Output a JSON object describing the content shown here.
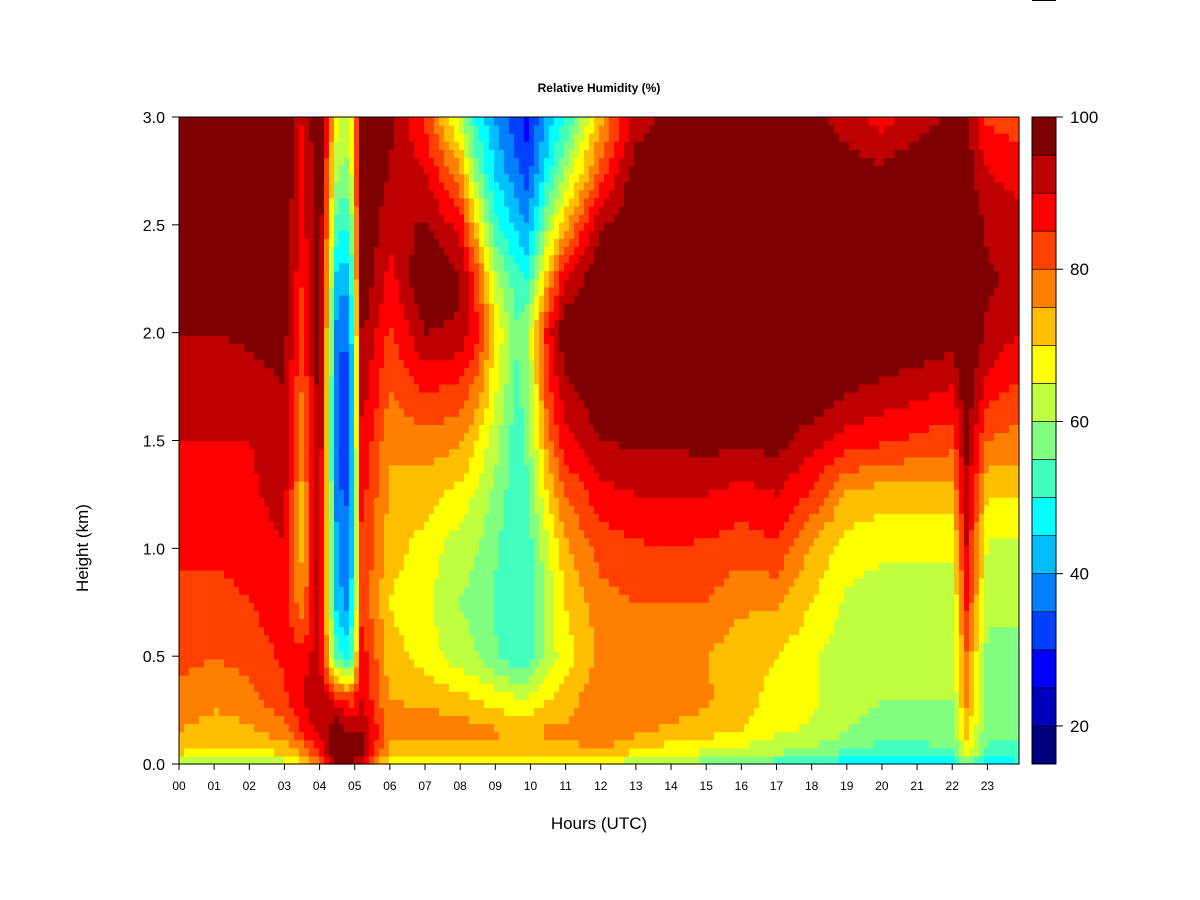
{
  "chart_data": {
    "type": "heatmap",
    "title": "Relative Humidity (%)",
    "xlabel": "Hours (UTC)",
    "ylabel": "Height (km)",
    "xlim": [
      0,
      23.9
    ],
    "ylim": [
      0,
      3.0
    ],
    "x_ticks": [
      "00",
      "01",
      "02",
      "03",
      "04",
      "05",
      "06",
      "07",
      "08",
      "09",
      "10",
      "11",
      "12",
      "13",
      "14",
      "15",
      "16",
      "17",
      "18",
      "19",
      "20",
      "21",
      "22",
      "23"
    ],
    "y_ticks": [
      "0.0",
      "0.5",
      "1.0",
      "1.5",
      "2.0",
      "2.5",
      "3.0"
    ],
    "colorbar": {
      "range": [
        15,
        100
      ],
      "ticks": [
        "20",
        "40",
        "60",
        "80",
        "100"
      ],
      "levels": [
        15,
        20,
        25,
        30,
        35,
        40,
        45,
        50,
        55,
        60,
        65,
        70,
        75,
        80,
        85,
        90,
        95,
        100
      ],
      "colors": [
        "#00007F",
        "#0000BF",
        "#0000FF",
        "#0040FF",
        "#0080FF",
        "#00BFFF",
        "#00FFFF",
        "#40FFBF",
        "#80FF80",
        "#BFFF40",
        "#FFFF00",
        "#FFBF00",
        "#FF8000",
        "#FF4000",
        "#FF0000",
        "#BF0000",
        "#7F0000"
      ]
    },
    "heights_km": [
      0.0,
      0.05,
      0.15,
      0.3,
      0.5,
      0.75,
      1.0,
      1.25,
      1.5,
      1.75,
      2.0,
      2.25,
      2.5,
      2.75,
      3.0
    ],
    "profiles": [
      {
        "hour": 0.0,
        "rh": [
          62,
          70,
          75,
          78,
          82,
          85,
          85,
          88,
          90,
          92,
          95,
          100,
          100,
          100,
          100
        ]
      },
      {
        "hour": 1.0,
        "rh": [
          60,
          68,
          73,
          76,
          80,
          83,
          86,
          88,
          90,
          92,
          95,
          100,
          100,
          100,
          100
        ]
      },
      {
        "hour": 2.0,
        "rh": [
          60,
          68,
          74,
          78,
          82,
          85,
          87,
          89,
          90,
          93,
          96,
          100,
          100,
          100,
          100
        ]
      },
      {
        "hour": 3.0,
        "rh": [
          62,
          70,
          78,
          84,
          86,
          88,
          90,
          92,
          93,
          95,
          97,
          100,
          100,
          100,
          100
        ]
      },
      {
        "hour": 3.5,
        "rh": [
          68,
          75,
          85,
          90,
          88,
          76,
          74,
          74,
          76,
          80,
          82,
          85,
          87,
          88,
          90
        ]
      },
      {
        "hour": 4.0,
        "rh": [
          75,
          85,
          92,
          94,
          92,
          93,
          95,
          96,
          97,
          98,
          100,
          100,
          100,
          100,
          100
        ]
      },
      {
        "hour": 4.5,
        "rh": [
          95,
          100,
          100,
          88,
          52,
          42,
          40,
          36,
          34,
          34,
          36,
          42,
          52,
          60,
          66
        ]
      },
      {
        "hour": 4.85,
        "rh": [
          95,
          100,
          95,
          82,
          48,
          38,
          36,
          34,
          32,
          32,
          36,
          42,
          50,
          58,
          64
        ]
      },
      {
        "hour": 5.2,
        "rh": [
          90,
          96,
          95,
          90,
          88,
          84,
          85,
          87,
          90,
          93,
          96,
          100,
          100,
          100,
          100
        ]
      },
      {
        "hour": 6.0,
        "rh": [
          65,
          72,
          78,
          75,
          72,
          70,
          72,
          74,
          76,
          80,
          84,
          88,
          92,
          95,
          96
        ]
      },
      {
        "hour": 7.0,
        "rh": [
          62,
          70,
          78,
          74,
          68,
          66,
          68,
          72,
          78,
          86,
          95,
          100,
          96,
          90,
          84
        ]
      },
      {
        "hour": 8.0,
        "rh": [
          64,
          72,
          78,
          72,
          62,
          60,
          62,
          68,
          76,
          84,
          94,
          96,
          88,
          76,
          62
        ]
      },
      {
        "hour": 8.5,
        "rh": [
          68,
          72,
          76,
          70,
          60,
          58,
          60,
          64,
          70,
          78,
          86,
          82,
          70,
          56,
          48
        ]
      },
      {
        "hour": 9.0,
        "rh": [
          66,
          72,
          76,
          68,
          56,
          54,
          56,
          58,
          62,
          66,
          70,
          62,
          52,
          44,
          40
        ]
      },
      {
        "hour": 9.6,
        "rh": [
          64,
          70,
          74,
          66,
          50,
          50,
          50,
          52,
          52,
          54,
          56,
          52,
          44,
          36,
          32
        ]
      },
      {
        "hour": 9.9,
        "rh": [
          66,
          72,
          74,
          66,
          52,
          52,
          52,
          54,
          56,
          58,
          60,
          50,
          40,
          32,
          28
        ]
      },
      {
        "hour": 10.5,
        "rh": [
          66,
          72,
          76,
          70,
          62,
          62,
          64,
          70,
          78,
          84,
          88,
          74,
          60,
          48,
          42
        ]
      },
      {
        "hour": 11.0,
        "rh": [
          66,
          72,
          76,
          72,
          68,
          70,
          74,
          80,
          88,
          94,
          100,
          90,
          74,
          60,
          50
        ]
      },
      {
        "hour": 12.0,
        "rh": [
          66,
          74,
          80,
          80,
          76,
          78,
          82,
          88,
          95,
          100,
          100,
          100,
          94,
          82,
          74
        ]
      },
      {
        "hour": 13.0,
        "rh": [
          60,
          68,
          76,
          78,
          76,
          80,
          84,
          90,
          96,
          100,
          100,
          100,
          100,
          98,
          92
        ]
      },
      {
        "hour": 14.0,
        "rh": [
          58,
          66,
          74,
          78,
          76,
          80,
          85,
          90,
          96,
          100,
          100,
          100,
          100,
          100,
          98
        ]
      },
      {
        "hour": 15.0,
        "rh": [
          57,
          64,
          72,
          76,
          75,
          80,
          84,
          90,
          97,
          100,
          100,
          100,
          100,
          100,
          100
        ]
      },
      {
        "hour": 16.0,
        "rh": [
          55,
          62,
          70,
          72,
          72,
          76,
          82,
          88,
          96,
          100,
          100,
          100,
          100,
          100,
          100
        ]
      },
      {
        "hour": 17.0,
        "rh": [
          52,
          60,
          66,
          68,
          70,
          76,
          84,
          90,
          97,
          100,
          100,
          100,
          100,
          100,
          100
        ]
      },
      {
        "hour": 18.0,
        "rh": [
          50,
          58,
          64,
          66,
          66,
          70,
          74,
          84,
          92,
          100,
          100,
          100,
          100,
          100,
          98
        ]
      },
      {
        "hour": 19.0,
        "rh": [
          46,
          54,
          60,
          62,
          62,
          64,
          68,
          74,
          88,
          96,
          100,
          100,
          100,
          98,
          92
        ]
      },
      {
        "hour": 20.0,
        "rh": [
          42,
          52,
          58,
          60,
          60,
          62,
          66,
          72,
          86,
          94,
          100,
          100,
          100,
          96,
          88
        ]
      },
      {
        "hour": 21.0,
        "rh": [
          42,
          52,
          58,
          60,
          60,
          62,
          66,
          72,
          84,
          92,
          100,
          100,
          100,
          100,
          92
        ]
      },
      {
        "hour": 22.0,
        "rh": [
          44,
          54,
          58,
          60,
          60,
          62,
          66,
          72,
          82,
          90,
          98,
          100,
          100,
          100,
          96
        ]
      },
      {
        "hour": 22.4,
        "rh": [
          56,
          66,
          72,
          76,
          80,
          86,
          90,
          94,
          96,
          100,
          100,
          100,
          100,
          98,
          96
        ]
      },
      {
        "hour": 23.0,
        "rh": [
          46,
          54,
          56,
          58,
          58,
          62,
          64,
          70,
          80,
          88,
          94,
          96,
          94,
          90,
          84
        ]
      },
      {
        "hour": 23.9,
        "rh": [
          48,
          54,
          56,
          58,
          58,
          62,
          64,
          70,
          78,
          84,
          90,
          94,
          92,
          88,
          82
        ]
      }
    ]
  }
}
